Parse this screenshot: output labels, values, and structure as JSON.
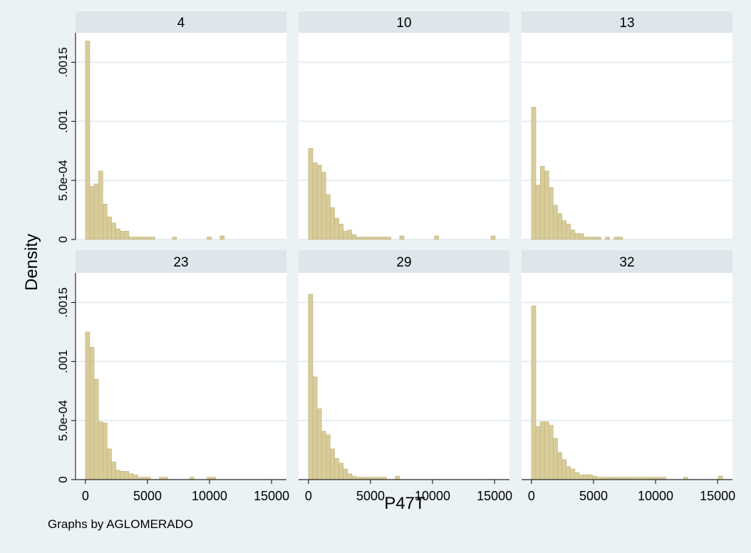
{
  "chart_data": {
    "type": "histogram-facets",
    "xlabel": "P47T",
    "ylabel": "Density",
    "note": "Graphs by AGLOMERADO",
    "xlim": [
      -800,
      16200
    ],
    "ylim": [
      0,
      0.00175
    ],
    "xticks": [
      0,
      5000,
      10000,
      15000
    ],
    "xtick_labels": [
      "0",
      "5000",
      "10000",
      "15000"
    ],
    "yticks": [
      0,
      0.0005,
      0.001,
      0.0015
    ],
    "ytick_labels": [
      "0",
      "5.0e-04",
      ".001",
      ".0015"
    ],
    "bin_width": 350,
    "colors": {
      "bar_fill": "#d8cc9a",
      "bar_stroke": "#bfb27a",
      "panel_header": "#dde6ea",
      "grid": "#e6edf1",
      "outer_bg": "#eaf2f3",
      "plot_bg": "#ffffff"
    },
    "panels": [
      {
        "label": "4",
        "bin_start": 0,
        "densities": [
          0.00168,
          0.00045,
          0.00047,
          0.00058,
          0.0003,
          0.00019,
          0.00014,
          9e-05,
          7e-05,
          7e-05,
          2e-05,
          2e-05,
          2e-05,
          2e-05,
          2e-05,
          2e-05,
          0,
          0,
          0,
          0,
          2e-05,
          0,
          0,
          0,
          0,
          0,
          0,
          0,
          2e-05,
          0,
          0,
          3e-05
        ]
      },
      {
        "label": "10",
        "bin_start": 0,
        "densities": [
          0.00077,
          0.00065,
          0.00063,
          0.00057,
          0.00038,
          0.00027,
          0.00018,
          0.00013,
          7e-05,
          8e-05,
          4e-05,
          2e-05,
          2e-05,
          2e-05,
          2e-05,
          2e-05,
          2e-05,
          2e-05,
          2e-05,
          0,
          0,
          3e-05,
          0,
          0,
          0,
          0,
          0,
          0,
          0,
          3e-05,
          0,
          0,
          0,
          0,
          0,
          0,
          0,
          0,
          0,
          0,
          0,
          0,
          3e-05
        ]
      },
      {
        "label": "13",
        "bin_start": 0,
        "densities": [
          0.00112,
          0.00046,
          0.00062,
          0.00058,
          0.00044,
          0.00029,
          0.00022,
          0.00016,
          0.00013,
          8e-05,
          5e-05,
          5e-05,
          2e-05,
          2e-05,
          2e-05,
          2e-05,
          0,
          2e-05,
          0,
          2e-05,
          2e-05
        ]
      },
      {
        "label": "23",
        "bin_start": 0,
        "densities": [
          0.00125,
          0.00112,
          0.00085,
          0.00049,
          0.00048,
          0.00026,
          0.00015,
          8e-05,
          7e-05,
          7e-05,
          5e-05,
          4e-05,
          2e-05,
          2e-05,
          2e-05,
          0,
          0,
          2e-05,
          2e-05,
          0,
          0,
          0,
          0,
          0,
          2e-05,
          0,
          0,
          0,
          2e-05,
          2e-05
        ]
      },
      {
        "label": "29",
        "bin_start": 0,
        "densities": [
          0.00157,
          0.00087,
          0.0006,
          0.00041,
          0.00038,
          0.00026,
          0.00018,
          0.00014,
          9e-05,
          5e-05,
          3e-05,
          2e-05,
          2e-05,
          2e-05,
          2e-05,
          2e-05,
          2e-05,
          2e-05,
          0,
          0,
          3e-05
        ]
      },
      {
        "label": "32",
        "bin_start": 0,
        "densities": [
          0.00147,
          0.00045,
          0.00049,
          0.00049,
          0.00046,
          0.00035,
          0.00023,
          0.00017,
          0.00011,
          9e-05,
          6e-05,
          4e-05,
          4e-05,
          4e-05,
          3e-05,
          2e-05,
          2e-05,
          2e-05,
          2e-05,
          2e-05,
          2e-05,
          2e-05,
          2e-05,
          2e-05,
          2e-05,
          2e-05,
          2e-05,
          2e-05,
          2e-05,
          2e-05,
          2e-05,
          0,
          0,
          0,
          0,
          2e-05,
          0,
          0,
          0,
          0,
          0,
          0,
          0,
          3e-05
        ]
      }
    ]
  }
}
